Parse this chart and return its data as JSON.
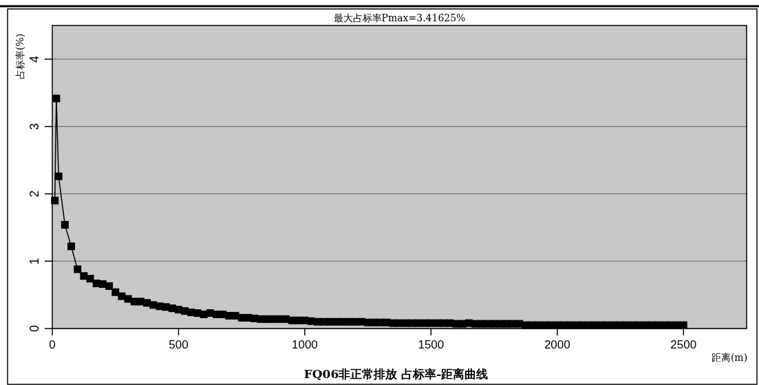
{
  "chart_data": {
    "type": "line",
    "title": "FQ06非正常排放 占标率-距离曲线",
    "xlabel": "距离(m)",
    "ylabel": "占标率(%)",
    "annotations": [
      "最大占标率Pmax=3.41625%"
    ],
    "x": [
      10,
      16,
      25,
      50,
      75,
      100,
      125,
      150,
      175,
      200,
      225,
      250,
      275,
      300,
      325,
      350,
      375,
      400,
      425,
      450,
      475,
      500,
      525,
      550,
      575,
      600,
      625,
      650,
      675,
      700,
      725,
      750,
      775,
      800,
      825,
      850,
      875,
      900,
      925,
      950,
      975,
      1000,
      1025,
      1050,
      1075,
      1100,
      1125,
      1150,
      1175,
      1200,
      1225,
      1250,
      1275,
      1300,
      1325,
      1350,
      1375,
      1400,
      1425,
      1450,
      1475,
      1500,
      1525,
      1550,
      1575,
      1600,
      1625,
      1650,
      1675,
      1700,
      1725,
      1750,
      1775,
      1800,
      1825,
      1850,
      1875,
      1900,
      1925,
      1950,
      1975,
      2000,
      2025,
      2050,
      2075,
      2100,
      2125,
      2150,
      2175,
      2200,
      2225,
      2250,
      2275,
      2300,
      2325,
      2350,
      2375,
      2400,
      2425,
      2450,
      2475,
      2500
    ],
    "series": [
      {
        "color": "#000000",
        "values": [
          1.9,
          3.41625,
          2.26,
          1.54,
          1.22,
          0.88,
          0.78,
          0.74,
          0.67,
          0.66,
          0.63,
          0.54,
          0.48,
          0.44,
          0.4,
          0.4,
          0.38,
          0.35,
          0.33,
          0.32,
          0.3,
          0.28,
          0.26,
          0.24,
          0.23,
          0.21,
          0.23,
          0.21,
          0.21,
          0.19,
          0.19,
          0.16,
          0.16,
          0.15,
          0.14,
          0.14,
          0.14,
          0.14,
          0.14,
          0.12,
          0.12,
          0.12,
          0.11,
          0.1,
          0.1,
          0.1,
          0.1,
          0.1,
          0.1,
          0.1,
          0.1,
          0.09,
          0.09,
          0.09,
          0.09,
          0.08,
          0.08,
          0.08,
          0.08,
          0.08,
          0.08,
          0.08,
          0.08,
          0.08,
          0.08,
          0.07,
          0.07,
          0.08,
          0.07,
          0.07,
          0.07,
          0.07,
          0.07,
          0.07,
          0.07,
          0.07,
          0.05,
          0.05,
          0.05,
          0.05,
          0.05,
          0.05,
          0.05,
          0.05,
          0.05,
          0.05,
          0.05,
          0.05,
          0.05,
          0.05,
          0.05,
          0.05,
          0.05,
          0.05,
          0.05,
          0.05,
          0.05,
          0.05,
          0.05,
          0.05,
          0.05,
          0.05
        ]
      }
    ],
    "xlim": [
      0,
      2750
    ],
    "ylim": [
      0,
      4.5
    ],
    "xticks": [
      0,
      500,
      1000,
      1500,
      2000,
      2500
    ],
    "yticks": [
      0,
      1,
      2,
      3,
      4
    ],
    "grid": "y",
    "marker": "square",
    "line_style": "solid"
  }
}
